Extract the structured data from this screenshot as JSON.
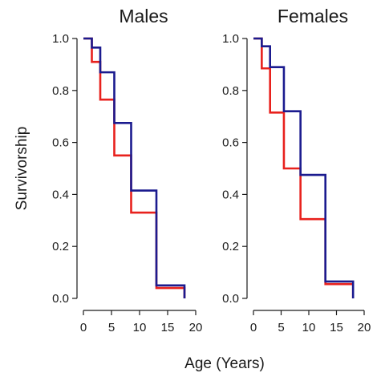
{
  "chart_data": {
    "type": "line",
    "ylabel": "Survivorship",
    "xlabel": "Age (Years)",
    "xlim": [
      0,
      20
    ],
    "ylim": [
      0,
      1
    ],
    "x_ticks": [
      "0",
      "5",
      "10",
      "15",
      "20"
    ],
    "y_ticks": [
      "0.0",
      "0.2",
      "0.4",
      "0.6",
      "0.8",
      "1.0"
    ],
    "grid": false,
    "panels": [
      {
        "title": "Males",
        "series": [
          {
            "color": "#e8211d",
            "x": [
              0,
              1.5,
              3,
              5.5,
              8.5,
              13,
              18
            ],
            "y": [
              1.0,
              0.91,
              0.765,
              0.55,
              0.33,
              0.04,
              0.0
            ]
          },
          {
            "color": "#1b1b8f",
            "x": [
              0,
              1.5,
              3,
              5.5,
              8.5,
              13,
              18
            ],
            "y": [
              1.0,
              0.965,
              0.87,
              0.675,
              0.415,
              0.05,
              0.0
            ]
          }
        ]
      },
      {
        "title": "Females",
        "series": [
          {
            "color": "#e8211d",
            "x": [
              0,
              1.5,
              3,
              5.5,
              8.5,
              13,
              18
            ],
            "y": [
              1.0,
              0.885,
              0.715,
              0.5,
              0.305,
              0.055,
              0.0
            ]
          },
          {
            "color": "#1b1b8f",
            "x": [
              0,
              1.5,
              3,
              5.5,
              8.5,
              13,
              18
            ],
            "y": [
              1.0,
              0.97,
              0.89,
              0.72,
              0.475,
              0.065,
              0.0
            ]
          }
        ]
      }
    ]
  }
}
